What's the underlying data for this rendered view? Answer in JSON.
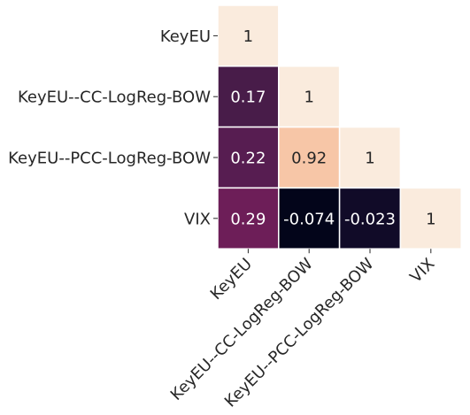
{
  "chart_data": {
    "type": "heatmap",
    "title": "",
    "xlabel": "",
    "ylabel": "",
    "layout": "lower-triangle",
    "row_labels": [
      "KeyEU",
      "KeyEU--CC-LogReg-BOW",
      "KeyEU--PCC-LogReg-BOW",
      "VIX"
    ],
    "col_labels": [
      "KeyEU",
      "KeyEU--CC-LogReg-BOW",
      "KeyEU--PCC-LogReg-BOW",
      "VIX"
    ],
    "values": [
      [
        1,
        null,
        null,
        null
      ],
      [
        0.17,
        1,
        null,
        null
      ],
      [
        0.22,
        0.92,
        1,
        null
      ],
      [
        0.29,
        -0.074,
        -0.023,
        1
      ]
    ],
    "cell_labels": [
      [
        "1",
        "",
        "",
        ""
      ],
      [
        "0.17",
        "1",
        "",
        ""
      ],
      [
        "0.22",
        "0.92",
        "1",
        ""
      ],
      [
        "0.29",
        "-0.074",
        "-0.023",
        "1"
      ]
    ],
    "colormap": "rocket",
    "color_range": [
      -0.074,
      1
    ],
    "colorbar": false,
    "grid": false
  },
  "colors": {
    "low": "#03051a",
    "high": "#faebdd",
    "cell_border": "#ffffff",
    "text_dark": "#262626",
    "text_light": "#ffffff",
    "axis_text": "#262626",
    "tick": "#262626"
  }
}
